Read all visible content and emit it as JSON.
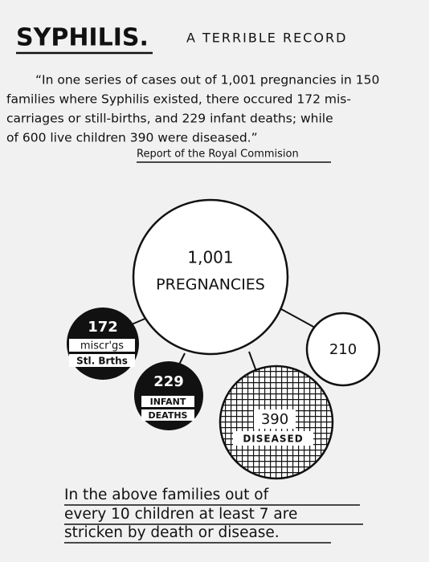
{
  "header": {
    "title": "SYPHILIS.",
    "subtitle": "A TERRIBLE RECORD"
  },
  "quote": {
    "lines": [
      "“In one series of cases out of 1,001 pregnancies in 150",
      "families where Syphilis existed, there occured 172 mis-",
      "carriages or still-births, and 229 infant deaths; while",
      "of 600 live children 390 were diseased.”"
    ],
    "attribution": "Report of the Royal Commision"
  },
  "nodes": [
    {
      "lines": [
        "1,001",
        "PREGNANCIES"
      ]
    },
    {
      "lines": [
        "172",
        "miscr'gs",
        "Stl. Brths"
      ]
    },
    {
      "lines": [
        "229",
        "INFANT",
        "DEATHS"
      ]
    },
    {
      "lines": [
        "390",
        "DISEASED"
      ]
    },
    {
      "lines": [
        "210"
      ]
    }
  ],
  "footer": {
    "lines": [
      "In the above families out of",
      "every 10 children at least 7 are",
      "stricken by death or disease."
    ]
  }
}
